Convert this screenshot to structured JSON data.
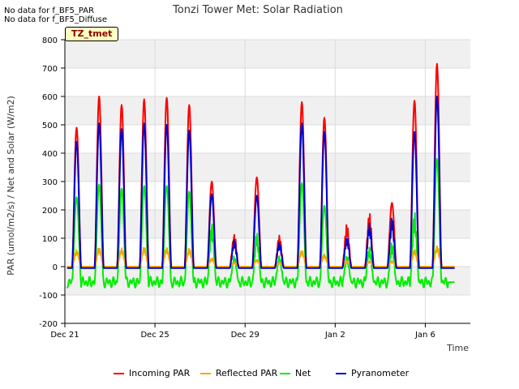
{
  "no_data_notes": [
    "No data for f_BF5_PAR",
    "No data for f_BF5_Diffuse"
  ],
  "tag_label": "TZ_tmet",
  "chart_data": {
    "type": "line",
    "title": "Tonzi Tower Met: Solar Radiation",
    "xlabel": "Time",
    "ylabel": "PAR (umol/m2/s) / Net and Solar (W/m2)",
    "ylim": [
      -200,
      800
    ],
    "yticks": [
      -200,
      -100,
      0,
      100,
      200,
      300,
      400,
      500,
      600,
      700,
      800
    ],
    "xlim": [
      0,
      18
    ],
    "xticks": [
      {
        "x": 0,
        "label": "Dec 21"
      },
      {
        "x": 4,
        "label": "Dec 25"
      },
      {
        "x": 8,
        "label": "Dec 29"
      },
      {
        "x": 12,
        "label": "Jan 2"
      },
      {
        "x": 16,
        "label": "Jan 6"
      }
    ],
    "grid": true,
    "legend_position": "bottom",
    "days": [
      0.5,
      1.5,
      2.5,
      3.5,
      4.5,
      5.5,
      6.5,
      7.5,
      8.5,
      9.5,
      10.5,
      11.5,
      12.5,
      13.5,
      14.5,
      15.5,
      16.5
    ],
    "series": [
      {
        "name": "Incoming PAR",
        "color": "#ff0000",
        "night": 0,
        "peaks": [
          490,
          600,
          570,
          590,
          595,
          570,
          300,
          115,
          315,
          110,
          580,
          525,
          150,
          190,
          225,
          585,
          715
        ]
      },
      {
        "name": "Reflected PAR",
        "color": "#ffa500",
        "night": 0,
        "peaks": [
          60,
          70,
          65,
          70,
          70,
          65,
          30,
          15,
          25,
          15,
          60,
          45,
          20,
          20,
          20,
          60,
          75
        ]
      },
      {
        "name": "Net",
        "color": "#00ee00",
        "night": -55,
        "peaks": [
          245,
          290,
          275,
          285,
          285,
          265,
          160,
          40,
          120,
          40,
          295,
          215,
          40,
          75,
          85,
          195,
          380
        ]
      },
      {
        "name": "Pyranometer",
        "color": "#0000cc",
        "night": -5,
        "peaks": [
          440,
          505,
          485,
          505,
          500,
          480,
          255,
          95,
          250,
          90,
          505,
          475,
          110,
          155,
          175,
          475,
          600
        ]
      }
    ]
  }
}
